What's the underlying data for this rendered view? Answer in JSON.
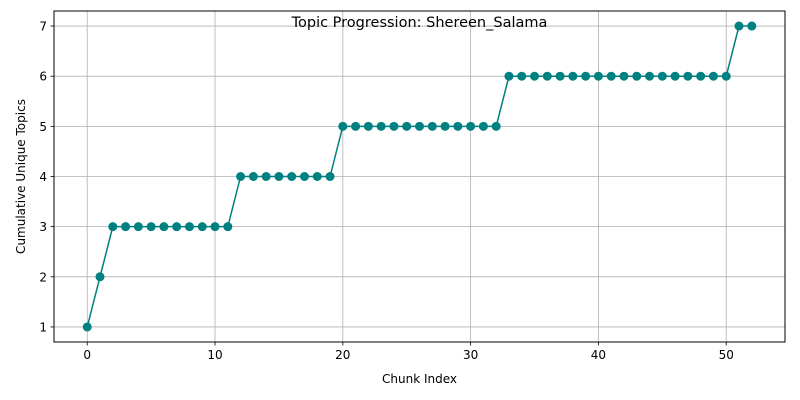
{
  "chart_data": {
    "type": "line",
    "title": "Topic Progression: Shereen_Salama",
    "xlabel": "Chunk Index",
    "ylabel": "Cumulative Unique Topics",
    "xlim": [
      -2.6,
      54.6
    ],
    "ylim": [
      0.7,
      7.3
    ],
    "xticks": [
      0,
      10,
      20,
      30,
      40,
      50
    ],
    "yticks": [
      1,
      2,
      3,
      4,
      5,
      6,
      7
    ],
    "grid": true,
    "color": "#008080",
    "x": [
      0,
      1,
      2,
      3,
      4,
      5,
      6,
      7,
      8,
      9,
      10,
      11,
      12,
      13,
      14,
      15,
      16,
      17,
      18,
      19,
      20,
      21,
      22,
      23,
      24,
      25,
      26,
      27,
      28,
      29,
      30,
      31,
      32,
      33,
      34,
      35,
      36,
      37,
      38,
      39,
      40,
      41,
      42,
      43,
      44,
      45,
      46,
      47,
      48,
      49,
      50,
      51,
      52
    ],
    "values": [
      1,
      2,
      3,
      3,
      3,
      3,
      3,
      3,
      3,
      3,
      3,
      3,
      4,
      4,
      4,
      4,
      4,
      4,
      4,
      4,
      5,
      5,
      5,
      5,
      5,
      5,
      5,
      5,
      5,
      5,
      5,
      5,
      5,
      6,
      6,
      6,
      6,
      6,
      6,
      6,
      6,
      6,
      6,
      6,
      6,
      6,
      6,
      6,
      6,
      6,
      6,
      7,
      7
    ]
  }
}
